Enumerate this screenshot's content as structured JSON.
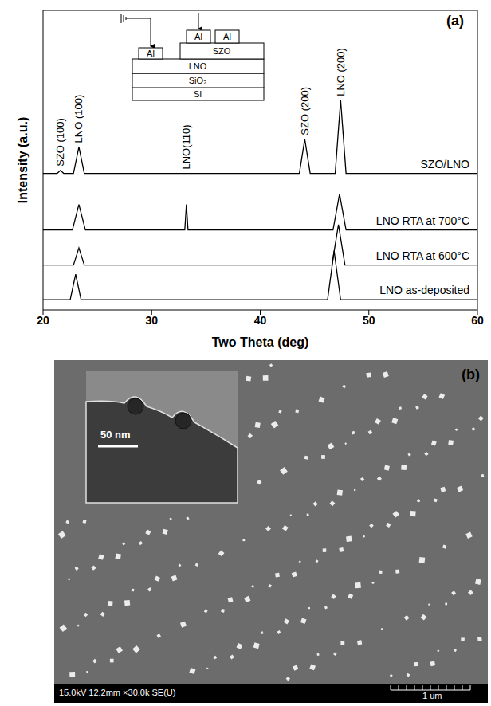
{
  "chart_data": {
    "type": "line",
    "label": "(a)",
    "x_label": "Two Theta (deg)",
    "y_label": "Intensity (a.u.)",
    "xlim": [
      20,
      60
    ],
    "xticks": [
      20,
      30,
      40,
      50,
      60
    ],
    "ylim": [
      0,
      100
    ],
    "yticks": [],
    "tick_labels": "x",
    "grid": false,
    "series": [
      {
        "name": "SZO/LNO",
        "color": "#000000",
        "x": [
          20,
          21.3,
          21.6,
          21.9,
          22.8,
          23.3,
          23.8,
          43.6,
          44.1,
          44.6,
          46.9,
          47.4,
          47.9,
          60
        ],
        "values": [
          45.6,
          45.6,
          46.6,
          45.6,
          45.6,
          54.4,
          45.6,
          45.6,
          57.0,
          45.6,
          45.6,
          70.0,
          45.6,
          45.6
        ]
      },
      {
        "name": "LNO RTA at 700°C",
        "color": "#000000",
        "x": [
          20,
          22.7,
          23.3,
          23.9,
          33.05,
          33.2,
          33.35,
          46.7,
          47.3,
          47.9,
          60
        ],
        "values": [
          26.7,
          26.7,
          35.2,
          26.7,
          26.7,
          35.2,
          26.7,
          26.7,
          38.7,
          26.7,
          26.7
        ]
      },
      {
        "name": "LNO RTA at 600°C",
        "color": "#000000",
        "x": [
          20,
          22.8,
          23.3,
          23.8,
          46.6,
          47.2,
          47.8,
          60
        ],
        "values": [
          15.0,
          15.0,
          20.7,
          15.0,
          15.0,
          28.5,
          15.0,
          15.0
        ]
      },
      {
        "name": "LNO as-deposited",
        "color": "#000000",
        "x": [
          20,
          22.5,
          23.0,
          23.5,
          46.2,
          46.8,
          47.4,
          60
        ],
        "values": [
          3.4,
          3.4,
          11.9,
          3.4,
          3.4,
          19.7,
          3.4,
          3.4
        ]
      }
    ],
    "annotations": [
      {
        "text": "SZO (100)",
        "x": 21.6
      },
      {
        "text": "LNO (100)",
        "x": 23.3
      },
      {
        "text": "LNO(110)",
        "x": 33.2
      },
      {
        "text": "SZO (200)",
        "x": 44.1
      },
      {
        "text": "LNO (200)",
        "x": 47.4
      }
    ],
    "inset": {
      "electrodes": [
        "Al",
        "Al",
        "Al"
      ],
      "layers": [
        "SZO",
        "LNO",
        "SiO₂",
        "Si"
      ]
    }
  },
  "image": {
    "label": "(b)",
    "inset_scale_label": "50 nm",
    "info": "15.0kV 12.2mm ×30.0k SE(U)",
    "scale_label": "1 um"
  }
}
